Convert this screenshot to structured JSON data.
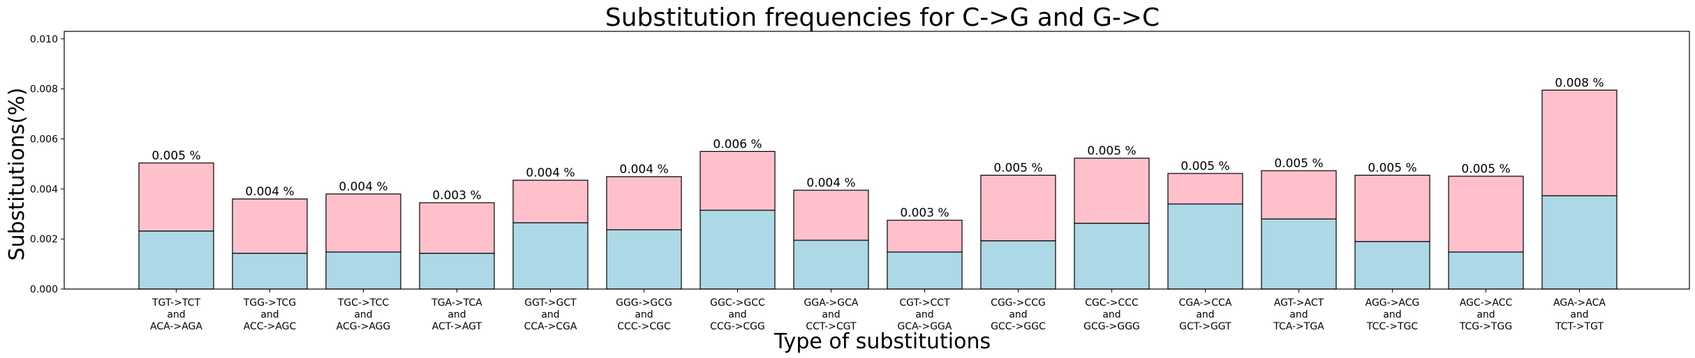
{
  "chart_data": {
    "type": "bar",
    "stacked": true,
    "title": "Substitution frequencies for C->G and G->C",
    "xlabel": "Type of substitutions",
    "ylabel": "Substitutions(%)",
    "ylim": [
      0,
      0.0103
    ],
    "yticks": [
      "0.000",
      "0.002",
      "0.004",
      "0.006",
      "0.008",
      "0.010"
    ],
    "ytick_values": [
      0,
      0.002,
      0.004,
      0.006,
      0.008,
      0.01
    ],
    "grid": false,
    "categories": [
      [
        "TGT->TCT",
        "and",
        "ACA->AGA"
      ],
      [
        "TGG->TCG",
        "and",
        "ACC->AGC"
      ],
      [
        "TGC->TCC",
        "and",
        "ACG->AGG"
      ],
      [
        "TGA->TCA",
        "and",
        "ACT->AGT"
      ],
      [
        "GGT->GCT",
        "and",
        "CCA->CGA"
      ],
      [
        "GGG->GCG",
        "and",
        "CCC->CGC"
      ],
      [
        "GGC->GCC",
        "and",
        "CCG->CGG"
      ],
      [
        "GGA->GCA",
        "and",
        "CCT->CGT"
      ],
      [
        "CGT->CCT",
        "and",
        "GCA->GGA"
      ],
      [
        "CGG->CCG",
        "and",
        "GCC->GGC"
      ],
      [
        "CGC->CCC",
        "and",
        "GCG->GGG"
      ],
      [
        "CGA->CCA",
        "and",
        "GCT->GGT"
      ],
      [
        "AGT->ACT",
        "and",
        "TCA->TGA"
      ],
      [
        "AGG->ACG",
        "and",
        "TCC->TGC"
      ],
      [
        "AGC->ACC",
        "and",
        "TCG->TGG"
      ],
      [
        "AGA->ACA",
        "and",
        "TCT->TGT"
      ]
    ],
    "series": [
      {
        "color": "#add8e6",
        "values": [
          0.00232,
          0.00143,
          0.00148,
          0.00143,
          0.00265,
          0.00237,
          0.00315,
          0.00195,
          0.00148,
          0.00193,
          0.00263,
          0.0034,
          0.0028,
          0.0019,
          0.00148,
          0.00373
        ]
      },
      {
        "color": "#ffc0cb",
        "values": [
          0.00272,
          0.00217,
          0.00232,
          0.00202,
          0.0017,
          0.00212,
          0.00235,
          0.002,
          0.00127,
          0.00262,
          0.0026,
          0.00122,
          0.00193,
          0.00265,
          0.00303,
          0.00422
        ]
      }
    ],
    "totals": [
      0.00504,
      0.0036,
      0.0038,
      0.00345,
      0.00435,
      0.00449,
      0.0055,
      0.00395,
      0.00275,
      0.00455,
      0.00523,
      0.00462,
      0.00473,
      0.00455,
      0.00451,
      0.00795
    ],
    "bar_labels": [
      "0.005 %",
      "0.004 %",
      "0.004 %",
      "0.003 %",
      "0.004 %",
      "0.004 %",
      "0.006 %",
      "0.004 %",
      "0.003 %",
      "0.005 %",
      "0.005 %",
      "0.005 %",
      "0.005 %",
      "0.005 %",
      "0.005 %",
      "0.008 %"
    ]
  }
}
